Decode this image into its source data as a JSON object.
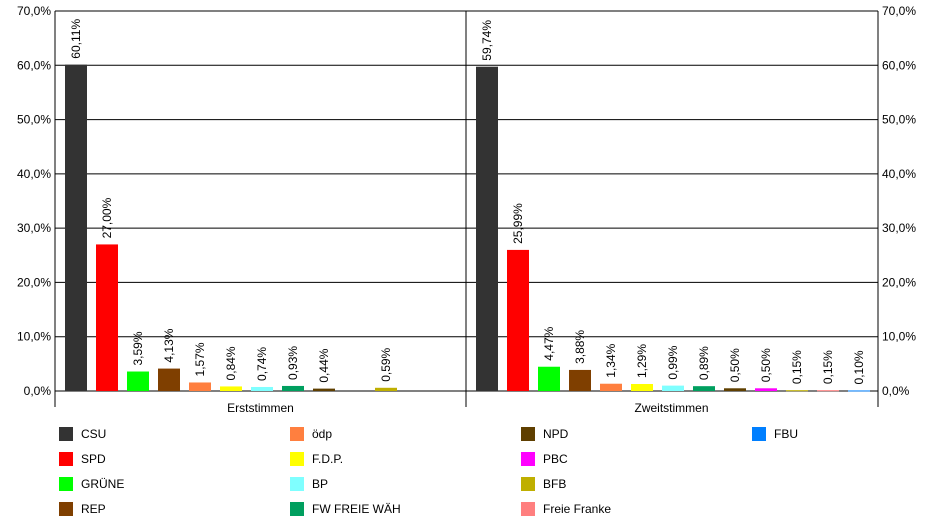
{
  "chart_data": {
    "type": "bar",
    "ylim": [
      0,
      70
    ],
    "yticks": [
      "0,0%",
      "10,0%",
      "20,0%",
      "30,0%",
      "40,0%",
      "50,0%",
      "60,0%",
      "70,0%"
    ],
    "grid": true,
    "legend_position": "bottom",
    "groups": [
      {
        "label": "Erststimmen",
        "bars": [
          {
            "party": "CSU",
            "value": 60.11,
            "label": "60,11%"
          },
          {
            "party": "SPD",
            "value": 27.0,
            "label": "27,00%"
          },
          {
            "party": "GRÜNE",
            "value": 3.59,
            "label": "3,59%"
          },
          {
            "party": "REP",
            "value": 4.13,
            "label": "4,13%"
          },
          {
            "party": "ödp",
            "value": 1.57,
            "label": "1,57%"
          },
          {
            "party": "F.D.P.",
            "value": 0.84,
            "label": "0,84%"
          },
          {
            "party": "BP",
            "value": 0.74,
            "label": "0,74%"
          },
          {
            "party": "FW FREIE WÄH",
            "value": 0.93,
            "label": "0,93%"
          },
          {
            "party": "NPD",
            "value": 0.44,
            "label": "0,44%"
          },
          {
            "party": "PBC",
            "value": null,
            "label": ""
          },
          {
            "party": "BFB",
            "value": 0.59,
            "label": "0,59%"
          }
        ]
      },
      {
        "label": "Zweitstimmen",
        "bars": [
          {
            "party": "CSU",
            "value": 59.74,
            "label": "59,74%"
          },
          {
            "party": "SPD",
            "value": 25.99,
            "label": "25,99%"
          },
          {
            "party": "GRÜNE",
            "value": 4.47,
            "label": "4,47%"
          },
          {
            "party": "REP",
            "value": 3.88,
            "label": "3,88%"
          },
          {
            "party": "ödp",
            "value": 1.34,
            "label": "1,34%"
          },
          {
            "party": "F.D.P.",
            "value": 1.29,
            "label": "1,29%"
          },
          {
            "party": "BP",
            "value": 0.99,
            "label": "0,99%"
          },
          {
            "party": "FW FREIE WÄH",
            "value": 0.89,
            "label": "0,89%"
          },
          {
            "party": "NPD",
            "value": 0.5,
            "label": "0,50%"
          },
          {
            "party": "PBC",
            "value": 0.5,
            "label": "0,50%"
          },
          {
            "party": "BFB",
            "value": 0.15,
            "label": "0,15%"
          },
          {
            "party": "Freie Franke",
            "value": 0.15,
            "label": "0,15%"
          },
          {
            "party": "FBU",
            "value": 0.1,
            "label": "0,10%"
          }
        ]
      }
    ],
    "legend": [
      {
        "name": "CSU",
        "color": "#333333"
      },
      {
        "name": "SPD",
        "color": "#ff0000"
      },
      {
        "name": "GRÜNE",
        "color": "#00ff00"
      },
      {
        "name": "REP",
        "color": "#7f3f00"
      },
      {
        "name": "ödp",
        "color": "#ff7f3f"
      },
      {
        "name": "F.D.P.",
        "color": "#ffff00"
      },
      {
        "name": "BP",
        "color": "#7fffff"
      },
      {
        "name": "FW FREIE WÄH",
        "color": "#009f5f"
      },
      {
        "name": "NPD",
        "color": "#5f3f00"
      },
      {
        "name": "PBC",
        "color": "#ff00ff"
      },
      {
        "name": "BFB",
        "color": "#bfaf00"
      },
      {
        "name": "Freie Franke",
        "color": "#ff7f7f"
      },
      {
        "name": "FBU",
        "color": "#007fff"
      }
    ]
  }
}
